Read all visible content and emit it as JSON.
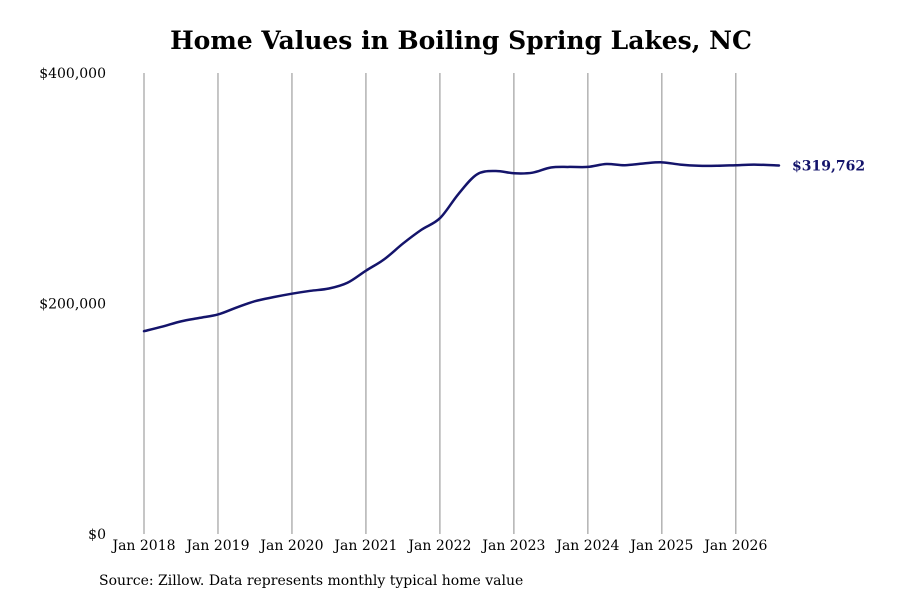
{
  "chart_data": {
    "type": "line",
    "title": "Home Values in Boiling Spring Lakes, NC",
    "xlabel": "",
    "ylabel": "",
    "ylim": [
      0,
      400000
    ],
    "xlim": [
      "2018-01",
      "2026-08"
    ],
    "grid": {
      "vertical": true,
      "horizontal": false
    },
    "x_ticks": [
      "Jan 2018",
      "Jan 2019",
      "Jan 2020",
      "Jan 2021",
      "Jan 2022",
      "Jan 2023",
      "Jan 2024",
      "Jan 2025",
      "Jan 2026"
    ],
    "y_ticks": [
      "$0",
      "$200,000",
      "$400,000"
    ],
    "line_color": "#14146b",
    "end_label": "$319,762",
    "series": [
      {
        "x": [
          "2018-01",
          "2018-04",
          "2018-07",
          "2018-10",
          "2019-01",
          "2019-04",
          "2019-07",
          "2019-10",
          "2020-01",
          "2020-04",
          "2020-07",
          "2020-10",
          "2021-01",
          "2021-04",
          "2021-07",
          "2021-10",
          "2022-01",
          "2022-04",
          "2022-07",
          "2022-10",
          "2023-01",
          "2023-04",
          "2023-07",
          "2023-10",
          "2024-01",
          "2024-04",
          "2024-07",
          "2024-10",
          "2025-01",
          "2025-04",
          "2025-07",
          "2025-10",
          "2026-01",
          "2026-04",
          "2026-08"
        ],
        "values": [
          176000,
          180000,
          184500,
          187500,
          190500,
          196500,
          202000,
          205500,
          208500,
          211000,
          213000,
          218000,
          228500,
          238500,
          252000,
          264000,
          274000,
          295000,
          312000,
          315000,
          313000,
          313500,
          318000,
          318500,
          318500,
          321000,
          320000,
          321500,
          322500,
          320500,
          319500,
          319500,
          320000,
          320500,
          319762
        ]
      }
    ]
  },
  "source": "Source: Zillow. Data represents monthly typical home value"
}
